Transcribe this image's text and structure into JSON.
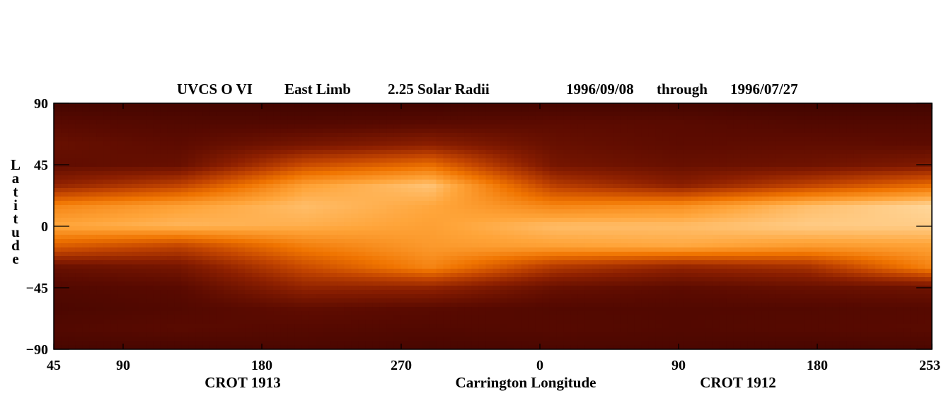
{
  "chart_data": {
    "type": "heatmap",
    "title_parts": [
      "UVCS O VI",
      "East Limb",
      "2.25 Solar Radii",
      "1996/09/08",
      "through",
      "1996/07/27"
    ],
    "ylabel": "Latitude",
    "xlabel": "Carrington Longitude",
    "rotation_labels": [
      "CROT 1913",
      "CROT 1912"
    ],
    "y_ticks": [
      {
        "value": 90,
        "label": "90"
      },
      {
        "value": 45,
        "label": "45"
      },
      {
        "value": 0,
        "label": "0"
      },
      {
        "value": -45,
        "label": "−45"
      },
      {
        "value": -90,
        "label": "−90"
      }
    ],
    "ylim": [
      -90,
      90
    ],
    "x_ticks": [
      "45",
      "90",
      "180",
      "270",
      "0",
      "90",
      "180",
      "253"
    ],
    "colormap": [
      "#2a0000",
      "#5a0a00",
      "#8c1f00",
      "#c24400",
      "#f07400",
      "#ffa53a",
      "#ffd9a0",
      "#ffffff"
    ],
    "intensity_by_latitude": {
      "latitudes": [
        90,
        75,
        60,
        45,
        30,
        15,
        0,
        -15,
        -30,
        -45,
        -60,
        -75,
        -90
      ],
      "longitudes": [
        "45",
        "90",
        "180",
        "270",
        "0",
        "90",
        "180",
        "253"
      ],
      "values": [
        [
          0.08,
          0.08,
          0.07,
          0.07,
          0.08,
          0.08,
          0.07,
          0.07
        ],
        [
          0.14,
          0.12,
          0.12,
          0.14,
          0.15,
          0.14,
          0.12,
          0.12
        ],
        [
          0.18,
          0.15,
          0.22,
          0.28,
          0.18,
          0.15,
          0.16,
          0.15
        ],
        [
          0.16,
          0.18,
          0.45,
          0.55,
          0.22,
          0.18,
          0.2,
          0.25
        ],
        [
          0.3,
          0.42,
          0.7,
          0.8,
          0.4,
          0.28,
          0.42,
          0.55
        ],
        [
          0.62,
          0.7,
          0.78,
          0.72,
          0.62,
          0.65,
          0.78,
          0.85
        ],
        [
          0.72,
          0.76,
          0.74,
          0.7,
          0.78,
          0.78,
          0.82,
          0.82
        ],
        [
          0.5,
          0.42,
          0.6,
          0.68,
          0.7,
          0.72,
          0.68,
          0.7
        ],
        [
          0.18,
          0.22,
          0.45,
          0.62,
          0.38,
          0.3,
          0.35,
          0.62
        ],
        [
          0.12,
          0.14,
          0.3,
          0.3,
          0.18,
          0.15,
          0.18,
          0.2
        ],
        [
          0.1,
          0.12,
          0.16,
          0.14,
          0.12,
          0.12,
          0.12,
          0.13
        ],
        [
          0.12,
          0.14,
          0.13,
          0.12,
          0.13,
          0.12,
          0.13,
          0.14
        ],
        [
          0.09,
          0.09,
          0.1,
          0.09,
          0.1,
          0.1,
          0.09,
          0.1
        ]
      ]
    }
  }
}
